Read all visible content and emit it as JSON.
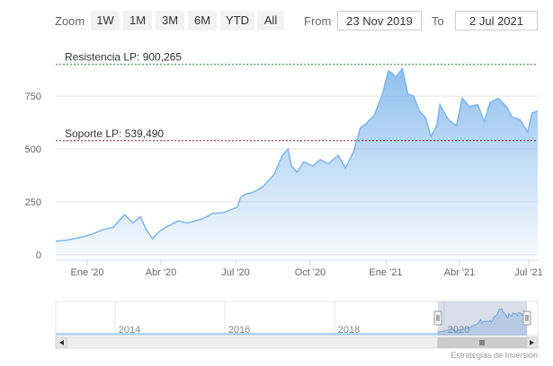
{
  "range_selector": {
    "zoom_label": "Zoom",
    "buttons": [
      "1W",
      "1M",
      "3M",
      "6M",
      "YTD",
      "All"
    ],
    "from_label": "From",
    "from_value": "23 Nov 2019",
    "to_label": "To",
    "to_value": "2 Jul 2021"
  },
  "credit": "Estrategias de Inversión",
  "colors": {
    "line": "#7cb5ec",
    "area_top": "#7cb5ec",
    "resistance_line": "#2e7d32",
    "support_line": "#8b1a1a"
  },
  "chart_data": {
    "type": "area",
    "title": "",
    "xlabel": "",
    "ylabel": "",
    "x_ticks": [
      "Ene '20",
      "Abr '20",
      "Jul '20",
      "Oct '20",
      "Ene '21",
      "Abr '21",
      "Jul '21"
    ],
    "y_ticks": [
      0,
      250,
      500,
      750
    ],
    "ylim": [
      0,
      950
    ],
    "xlim": [
      "2019-11-23",
      "2021-07-02"
    ],
    "grid": true,
    "annotations": [
      {
        "label": "Resistencia LP: 900,265",
        "value": 900.265,
        "style": "dashed"
      },
      {
        "label": "Soporte LP: 539,490",
        "value": 539.49,
        "style": "dashed"
      }
    ],
    "series": [
      {
        "x": [
          "2019-11-23",
          "2019-12-05",
          "2019-12-20",
          "2020-01-05",
          "2020-01-20",
          "2020-02-01",
          "2020-02-15",
          "2020-02-25",
          "2020-03-05",
          "2020-03-12",
          "2020-03-20",
          "2020-03-28",
          "2020-04-05",
          "2020-04-20",
          "2020-05-01",
          "2020-05-20",
          "2020-06-01",
          "2020-06-15",
          "2020-07-01",
          "2020-07-05",
          "2020-07-10",
          "2020-07-20",
          "2020-08-01",
          "2020-08-15",
          "2020-08-25",
          "2020-09-01",
          "2020-09-05",
          "2020-09-12",
          "2020-09-20",
          "2020-10-01",
          "2020-10-10",
          "2020-10-20",
          "2020-11-01",
          "2020-11-10",
          "2020-11-20",
          "2020-11-28",
          "2020-12-05",
          "2020-12-15",
          "2020-12-25",
          "2021-01-01",
          "2021-01-05",
          "2021-01-10",
          "2021-01-18",
          "2021-01-25",
          "2021-02-01",
          "2021-02-08",
          "2021-02-15",
          "2021-02-22",
          "2021-03-01",
          "2021-03-05",
          "2021-03-15",
          "2021-03-25",
          "2021-04-01",
          "2021-04-10",
          "2021-04-20",
          "2021-04-28",
          "2021-05-05",
          "2021-05-15",
          "2021-05-25",
          "2021-06-01",
          "2021-06-10",
          "2021-06-20",
          "2021-06-25",
          "2021-07-02"
        ],
        "values": [
          65,
          68,
          80,
          95,
          120,
          130,
          190,
          150,
          180,
          120,
          75,
          110,
          130,
          160,
          150,
          170,
          195,
          200,
          225,
          270,
          285,
          295,
          320,
          380,
          470,
          500,
          420,
          390,
          440,
          420,
          450,
          430,
          470,
          410,
          490,
          600,
          620,
          660,
          760,
          870,
          860,
          840,
          880,
          760,
          750,
          680,
          650,
          560,
          610,
          710,
          640,
          610,
          740,
          700,
          710,
          630,
          720,
          740,
          700,
          650,
          640,
          580,
          670,
          680
        ]
      }
    ]
  },
  "navigator": {
    "year_labels": [
      "2014",
      "2016",
      "2018",
      "2020"
    ]
  }
}
